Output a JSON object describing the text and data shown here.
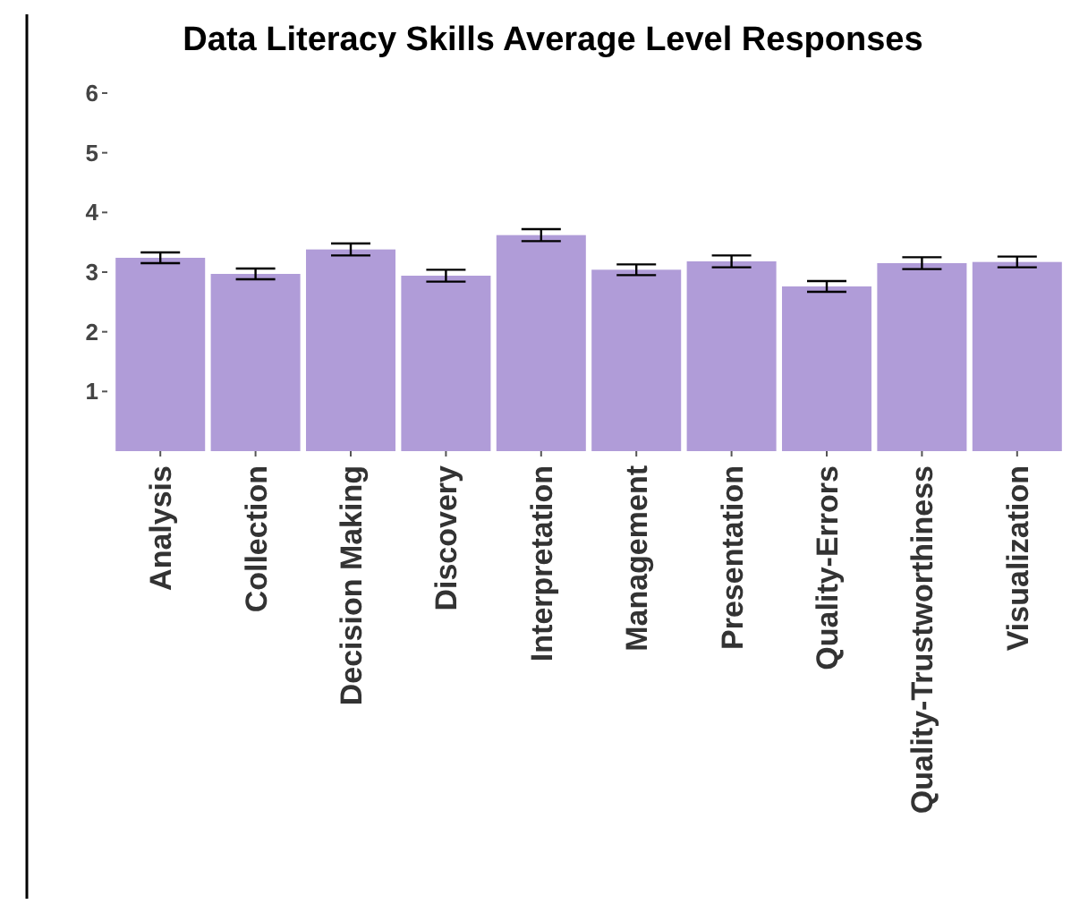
{
  "chart_data": {
    "type": "bar",
    "title": "Data Literacy Skills Average Level Responses",
    "categories": [
      "Analysis",
      "Collection",
      "Decision Making",
      "Discovery",
      "Interpretation",
      "Management",
      "Presentation",
      "Quality-Errors",
      "Quality-Trustworthiness",
      "Visualization"
    ],
    "values": [
      3.24,
      2.97,
      3.38,
      2.94,
      3.62,
      3.04,
      3.18,
      2.76,
      3.15,
      3.17
    ],
    "errors": [
      0.09,
      0.09,
      0.1,
      0.1,
      0.1,
      0.09,
      0.1,
      0.09,
      0.1,
      0.09
    ],
    "color": "#b09cd8",
    "ylim": [
      0,
      6
    ],
    "yticks": [
      1,
      2,
      3,
      4,
      5,
      6
    ],
    "grid": false
  }
}
